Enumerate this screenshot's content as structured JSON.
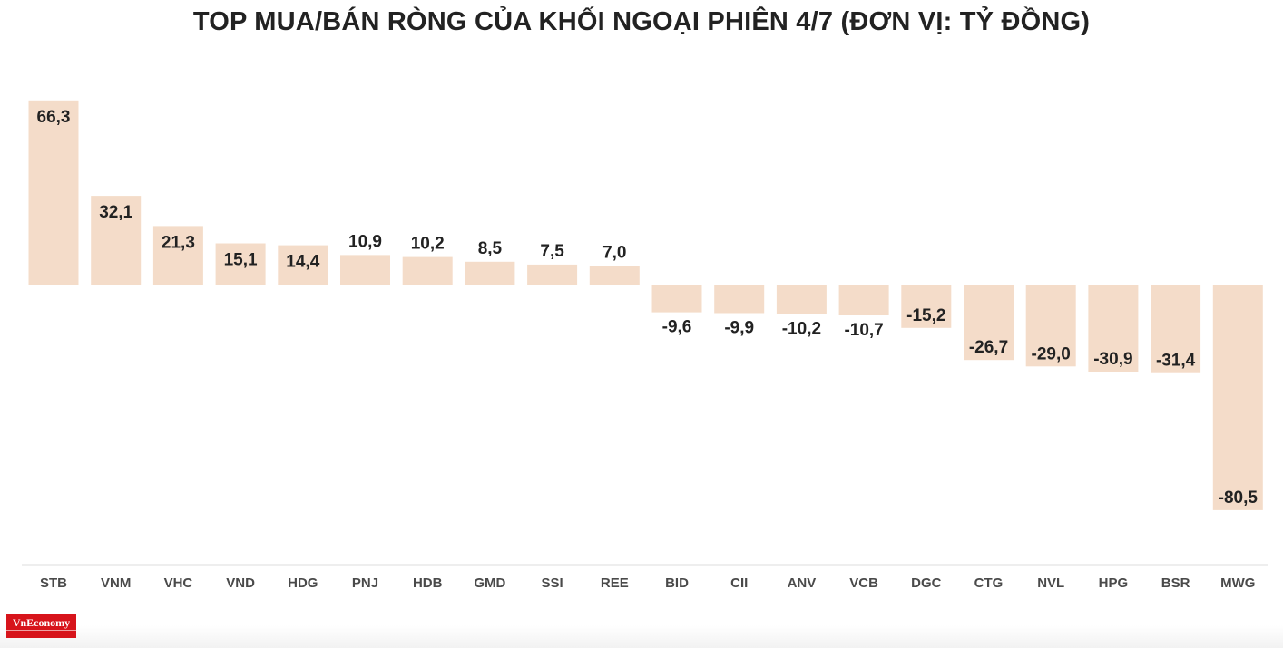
{
  "chart_data": {
    "type": "bar",
    "title": "TOP MUA/BÁN RÒNG CỦA KHỐI NGOẠI PHIÊN 4/7 (ĐƠN VỊ: TỶ ĐỒNG)",
    "categories": [
      "STB",
      "VNM",
      "VHC",
      "VND",
      "HDG",
      "PNJ",
      "HDB",
      "GMD",
      "SSI",
      "REE",
      "BID",
      "CII",
      "ANV",
      "VCB",
      "DGC",
      "CTG",
      "NVL",
      "HPG",
      "BSR",
      "MWG"
    ],
    "values": [
      66.3,
      32.1,
      21.3,
      15.1,
      14.4,
      10.9,
      10.2,
      8.5,
      7.5,
      7.0,
      -9.6,
      -9.9,
      -10.2,
      -10.7,
      -15.2,
      -26.7,
      -29.0,
      -30.9,
      -31.4,
      -80.5
    ],
    "value_labels": [
      "66,3",
      "32,1",
      "21,3",
      "15,1",
      "14,4",
      "10,9",
      "10,2",
      "8,5",
      "7,5",
      "7,0",
      "-9,6",
      "-9,9",
      "-10,2",
      "-10,7",
      "-15,2",
      "-26,7",
      "-29,0",
      "-30,9",
      "-31,4",
      "-80,5"
    ],
    "xlabel": "",
    "ylabel": "",
    "ylim": [
      -100,
      100
    ],
    "grid": false,
    "bar_color": "#f4dcc9",
    "text_color": "#222222",
    "axis_color": "#dddddd"
  },
  "logo": {
    "brand": "VnEconomy"
  }
}
